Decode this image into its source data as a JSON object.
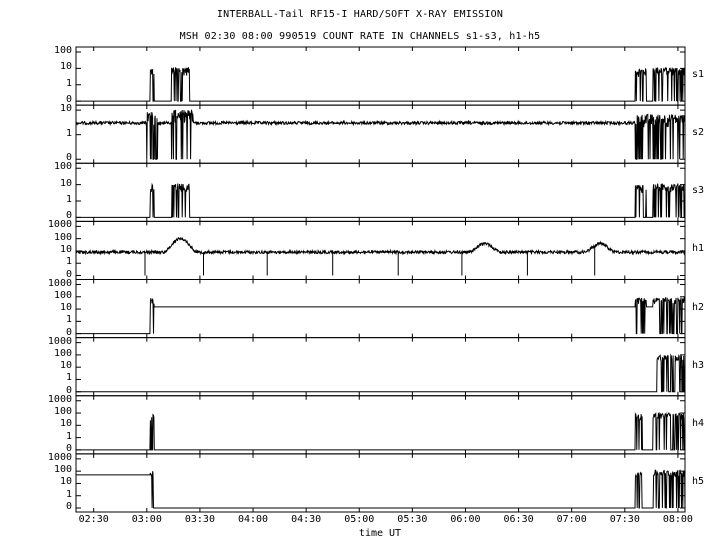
{
  "chart_data": {
    "type": "line",
    "title": "INTERBALL-Tail RF15-I HARD/SOFT X-RAY EMISSION",
    "subtitle": "MSH 02:30 08:00 990519  COUNT RATE IN CHANNELS s1-s3, h1-h5",
    "xlabel": "time UT",
    "xlim": [
      "02:20",
      "08:04"
    ],
    "x_ticks": [
      "02:30",
      "03:00",
      "03:30",
      "04:00",
      "04:30",
      "05:00",
      "05:30",
      "06:00",
      "06:30",
      "07:00",
      "07:30",
      "08:00"
    ],
    "grid": false,
    "yscale": "log-with-zero",
    "panels": [
      {
        "name": "s1",
        "y_ticks": [
          "100",
          "10",
          "1",
          "0"
        ],
        "baseline": 0,
        "bursts": [
          {
            "start": "03:02",
            "end": "03:04",
            "level": 6
          },
          {
            "start": "03:14",
            "end": "03:24",
            "level": 7
          },
          {
            "start": "07:36",
            "end": "07:42",
            "level": 6
          },
          {
            "start": "07:46",
            "end": "08:04",
            "level": 7
          }
        ]
      },
      {
        "name": "s2",
        "y_ticks": [
          "10",
          "1",
          "0"
        ],
        "baseline": 3,
        "bursts": [
          {
            "start": "03:00",
            "end": "03:06",
            "level": 5
          },
          {
            "start": "03:14",
            "end": "03:26",
            "level": 6
          },
          {
            "start": "07:36",
            "end": "08:04",
            "level": 4
          }
        ]
      },
      {
        "name": "s3",
        "y_ticks": [
          "100",
          "10",
          "1",
          "0"
        ],
        "baseline": 0,
        "bursts": [
          {
            "start": "03:02",
            "end": "03:04",
            "level": 6
          },
          {
            "start": "03:14",
            "end": "03:24",
            "level": 7
          },
          {
            "start": "07:36",
            "end": "07:42",
            "level": 6
          },
          {
            "start": "07:46",
            "end": "08:04",
            "level": 7
          }
        ]
      },
      {
        "name": "h1",
        "y_ticks": [
          "1000",
          "100",
          "10",
          "1",
          "0"
        ],
        "baseline": 8,
        "dropouts": [
          "02:59",
          "03:32",
          "04:08",
          "04:45",
          "05:22",
          "05:58",
          "06:35",
          "07:13"
        ],
        "peaks": [
          {
            "t": "03:18",
            "level": 100
          },
          {
            "t": "06:10",
            "level": 40
          },
          {
            "t": "07:15",
            "level": 40
          }
        ]
      },
      {
        "name": "h2",
        "y_ticks": [
          "1000",
          "100",
          "10",
          "1",
          "0"
        ],
        "baseline": 0,
        "plateau": {
          "start": "03:03",
          "end": "07:58",
          "level": 15
        },
        "bursts": [
          {
            "start": "03:02",
            "end": "03:04",
            "level": 50
          },
          {
            "start": "07:36",
            "end": "07:42",
            "level": 50
          },
          {
            "start": "07:46",
            "end": "08:04",
            "level": 50
          }
        ]
      },
      {
        "name": "h3",
        "y_ticks": [
          "1000",
          "100",
          "10",
          "1",
          "0"
        ],
        "baseline": 0,
        "bursts": [
          {
            "start": "07:48",
            "end": "08:04",
            "level": 60
          }
        ]
      },
      {
        "name": "h4",
        "y_ticks": [
          "1000",
          "100",
          "10",
          "1",
          "0"
        ],
        "baseline": 0,
        "bursts": [
          {
            "start": "03:02",
            "end": "03:04",
            "level": 50
          },
          {
            "start": "07:36",
            "end": "07:40",
            "level": 50
          },
          {
            "start": "07:46",
            "end": "08:04",
            "level": 60
          }
        ]
      },
      {
        "name": "h5",
        "y_ticks": [
          "1000",
          "100",
          "10",
          "1",
          "0"
        ],
        "baseline": 0,
        "plateau": {
          "start": "02:20",
          "end": "03:02",
          "level": 50
        },
        "bursts": [
          {
            "start": "03:02",
            "end": "03:04",
            "level": 60
          },
          {
            "start": "07:36",
            "end": "07:40",
            "level": 60
          },
          {
            "start": "07:46",
            "end": "08:04",
            "level": 70
          }
        ]
      }
    ]
  }
}
